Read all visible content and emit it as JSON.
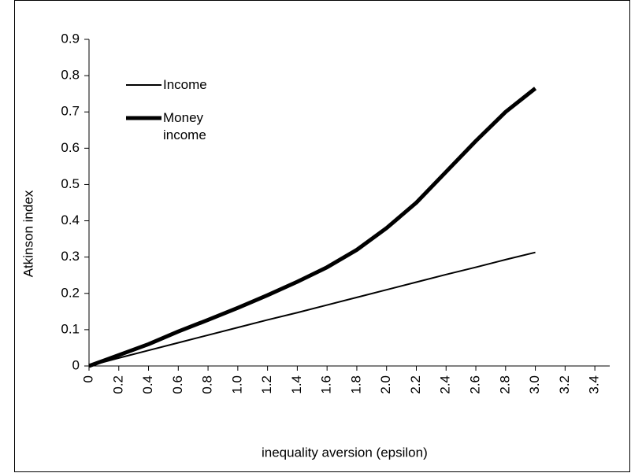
{
  "chart_data": {
    "type": "line",
    "x_label": "inequality aversion (epsilon)",
    "y_label": "Atkinson index",
    "x": [
      0,
      0.2,
      0.4,
      0.6,
      0.8,
      1.0,
      1.2,
      1.4,
      1.6,
      1.8,
      2.0,
      2.2,
      2.4,
      2.6,
      2.8,
      3.0
    ],
    "series": [
      {
        "name": "Income",
        "color": "#000000",
        "width": 2,
        "values": [
          0,
          0.022,
          0.043,
          0.064,
          0.085,
          0.106,
          0.127,
          0.147,
          0.168,
          0.189,
          0.21,
          0.231,
          0.252,
          0.272,
          0.293,
          0.313
        ]
      },
      {
        "name": "Money income",
        "color": "#000000",
        "width": 5,
        "values": [
          0,
          0.03,
          0.06,
          0.095,
          0.127,
          0.16,
          0.195,
          0.232,
          0.272,
          0.32,
          0.38,
          0.45,
          0.535,
          0.62,
          0.7,
          0.765
        ]
      }
    ],
    "xlim": [
      0,
      3.5
    ],
    "xticks": [
      0,
      0.2,
      0.4,
      0.6,
      0.8,
      {
        "value": 1,
        "label": "1.0"
      },
      1.2,
      1.4,
      1.6,
      1.8,
      {
        "value": 2,
        "label": "2.0"
      },
      2.2,
      2.4,
      2.6,
      2.8,
      {
        "value": 3,
        "label": "3.0"
      },
      3.2,
      3.4
    ],
    "ylim": [
      0,
      0.9
    ],
    "yticks": [
      0,
      0.1,
      0.2,
      0.3,
      0.4,
      0.5,
      0.6,
      0.7,
      0.8,
      0.9
    ],
    "grid": false,
    "legend": "top-left"
  }
}
